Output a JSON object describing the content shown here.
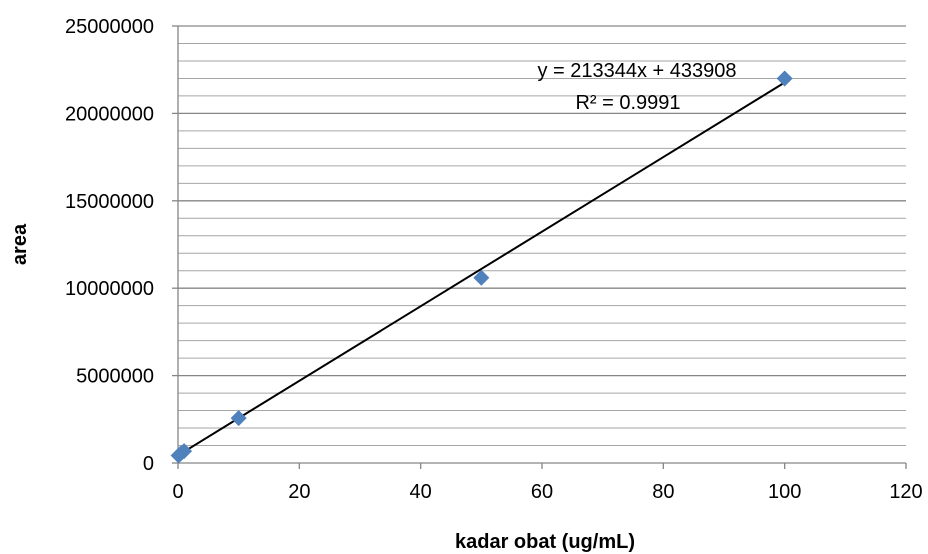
{
  "chart_data": {
    "type": "scatter",
    "title": "",
    "xlabel": "kadar obat (ug/mL)",
    "ylabel": "area",
    "xlim": [
      0,
      120
    ],
    "ylim": [
      0,
      25000000
    ],
    "x_ticks": [
      0,
      20,
      40,
      60,
      80,
      100,
      120
    ],
    "y_ticks": [
      0,
      5000000,
      10000000,
      15000000,
      20000000,
      25000000
    ],
    "x_tick_labels": [
      "0",
      "20",
      "40",
      "60",
      "80",
      "100",
      "120"
    ],
    "y_tick_labels": [
      "0",
      "5000000",
      "10000000",
      "15000000",
      "20000000",
      "25000000"
    ],
    "grid": {
      "major": true,
      "minor": true,
      "orientation": "horizontal"
    },
    "legend": "none",
    "series": [
      {
        "marker": "diamond",
        "color": "#4F81BD",
        "x": [
          0.1,
          0.5,
          1,
          10,
          50,
          100
        ],
        "y": [
          430000,
          560000,
          680000,
          2570000,
          10600000,
          22000000
        ]
      }
    ],
    "trendline": {
      "type": "linear",
      "slope": 213344,
      "intercept": 433908,
      "color": "#000000",
      "equation_label": "y = 213344x + 433908",
      "r2_label": "R² = 0.9991"
    }
  }
}
